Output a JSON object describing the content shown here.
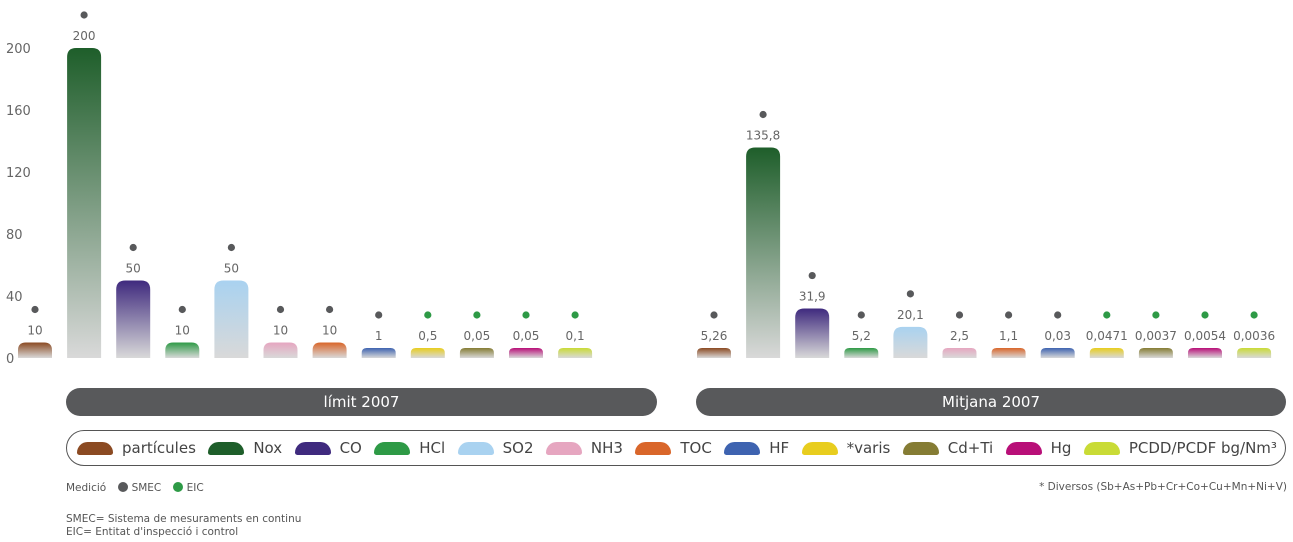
{
  "chart_data": {
    "type": "bar",
    "ylim": [
      0,
      215
    ],
    "yticks": [
      0,
      40,
      80,
      120,
      160,
      200
    ],
    "pollutants": [
      "partícules",
      "Nox",
      "CO",
      "HCl",
      "SO2",
      "NH3",
      "TOC",
      "HF",
      "*varis",
      "Cd+Ti",
      "Hg",
      "PCDD/PCDF bg/Nm³"
    ],
    "colors": [
      "#8B4A22",
      "#1E5E2A",
      "#3F2A7E",
      "#2E9A46",
      "#A9D2F0",
      "#E6A6C0",
      "#D9662A",
      "#3E63B0",
      "#E8CD1E",
      "#857C34",
      "#B80F78",
      "#C9DB36"
    ],
    "groups": [
      {
        "name": "límit 2007",
        "values": [
          10,
          200,
          50,
          10,
          50,
          10,
          10,
          1,
          0.5,
          0.05,
          0.05,
          0.1
        ],
        "labels": [
          "10",
          "200",
          "50",
          "10",
          "50",
          "10",
          "10",
          "1",
          "0,5",
          "0,05",
          "0,05",
          "0,1"
        ],
        "measurement": [
          "SMEC",
          "SMEC",
          "SMEC",
          "SMEC",
          "SMEC",
          "SMEC",
          "SMEC",
          "SMEC",
          "EIC",
          "EIC",
          "EIC",
          "EIC"
        ]
      },
      {
        "name": "Mitjana 2007",
        "values": [
          5.26,
          135.8,
          31.9,
          5.2,
          20.1,
          2.5,
          1.1,
          0.03,
          0.0471,
          0.0037,
          0.0054,
          0.0036
        ],
        "labels": [
          "5,26",
          "135,8",
          "31,9",
          "5,2",
          "20,1",
          "2,5",
          "1,1",
          "0,03",
          "0,0471",
          "0,0037",
          "0,0054",
          "0,0036"
        ],
        "measurement": [
          "SMEC",
          "SMEC",
          "SMEC",
          "SMEC",
          "SMEC",
          "SMEC",
          "SMEC",
          "SMEC",
          "EIC",
          "EIC",
          "EIC",
          "EIC"
        ]
      }
    ]
  },
  "legend_items": [
    "partícules",
    "Nox",
    "CO",
    "HCl",
    "SO2",
    "NH3",
    "TOC",
    "HF",
    "*varis",
    "Cd+Ti",
    "Hg",
    "PCDD/PCDF bg/Nm³"
  ],
  "measurement_legend": {
    "title": "Medició",
    "smec": "SMEC",
    "eic": "EIC",
    "smec_color": "#58595b",
    "eic_color": "#2E9A46"
  },
  "footnote": "* Diversos (Sb+As+Pb+Cr+Co+Cu+Mn+Ni+V)",
  "definitions": [
    "SMEC= Sistema de mesuraments en continu",
    "EIC= Entitat d'inspecció i control"
  ]
}
